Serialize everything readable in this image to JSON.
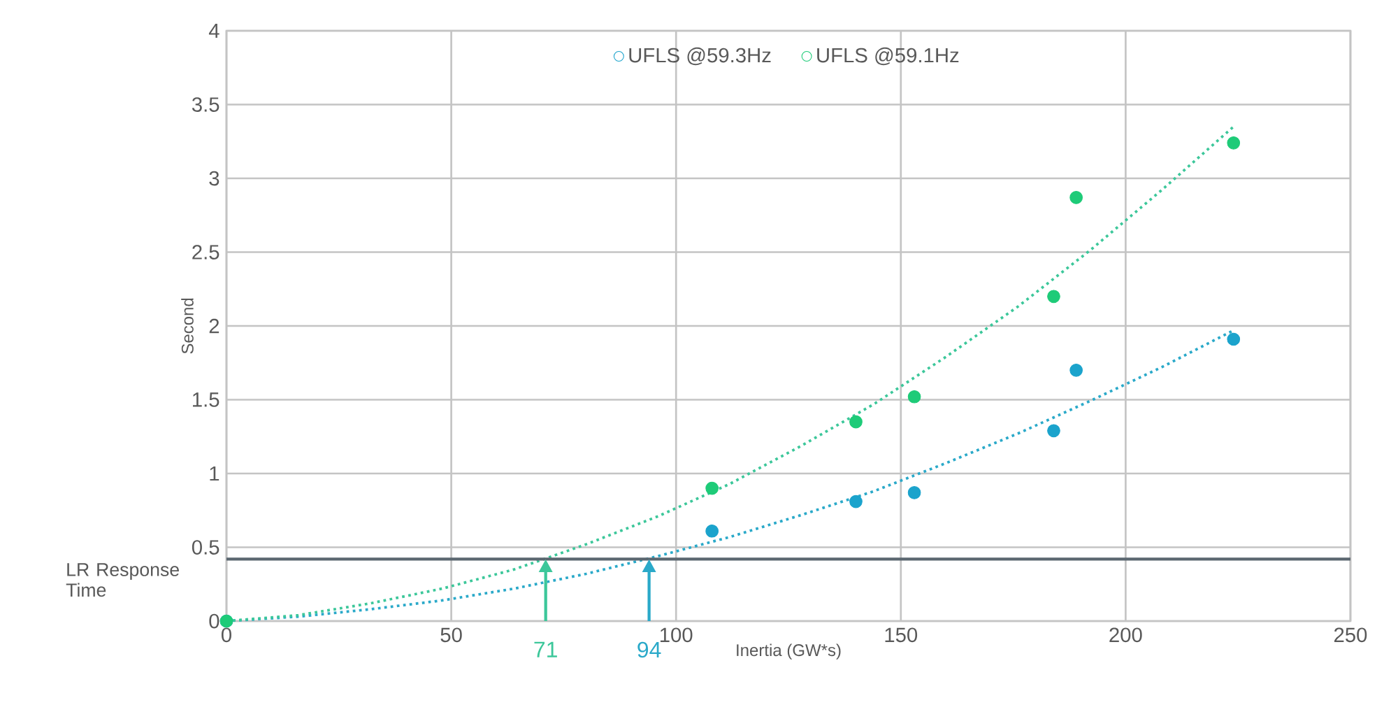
{
  "chart_data": {
    "type": "scatter",
    "xlabel": "Inertia (GW*s)",
    "ylabel": "Second",
    "xlim": [
      0,
      250
    ],
    "xticks": [
      0,
      50,
      100,
      150,
      200,
      250
    ],
    "ylim": [
      0,
      4
    ],
    "yticks": [
      0,
      0.5,
      1,
      1.5,
      2,
      2.5,
      3,
      3.5,
      4
    ],
    "grid": true,
    "legend": "top",
    "marker": "circle",
    "series": [
      {
        "name": "UFLS @59.3Hz",
        "color": "#1ba3cc",
        "x": [
          0,
          108,
          140,
          153,
          184,
          189,
          224
        ],
        "values": [
          0,
          0.61,
          0.81,
          0.87,
          1.29,
          1.7,
          1.91
        ]
      },
      {
        "name": "UFLS @59.1Hz",
        "color": "#1ecb78",
        "x": [
          0,
          108,
          140,
          153,
          184,
          189,
          224
        ],
        "values": [
          0,
          0.9,
          1.35,
          1.52,
          2.2,
          2.87,
          3.24
        ]
      },
      {
        "type": "line",
        "line_style": "dotted",
        "marker": "none",
        "color": "#2aa9c9",
        "x": [
          0,
          16,
          32,
          48,
          64,
          80,
          96,
          112,
          128,
          144,
          160,
          176,
          192,
          208,
          224
        ],
        "values": [
          0,
          0.03,
          0.08,
          0.14,
          0.22,
          0.32,
          0.44,
          0.57,
          0.72,
          0.88,
          1.07,
          1.27,
          1.49,
          1.72,
          1.97
        ]
      },
      {
        "type": "line",
        "line_style": "dotted",
        "marker": "none",
        "color": "#3cc79a",
        "x": [
          0,
          16,
          32,
          48,
          64,
          80,
          96,
          112,
          128,
          144,
          160,
          176,
          192,
          208,
          224
        ],
        "values": [
          0,
          0.04,
          0.12,
          0.22,
          0.35,
          0.52,
          0.71,
          0.93,
          1.19,
          1.47,
          1.79,
          2.13,
          2.51,
          2.92,
          3.35
        ]
      }
    ],
    "ref_lines": [
      {
        "axis": "y",
        "value": 0.42,
        "label": "LR Response Time",
        "color": "#5b6770"
      }
    ],
    "annotations": [
      {
        "text": "71",
        "x": 71,
        "y": 0.42
      },
      {
        "text": "94",
        "x": 94,
        "y": 0.42
      }
    ]
  }
}
